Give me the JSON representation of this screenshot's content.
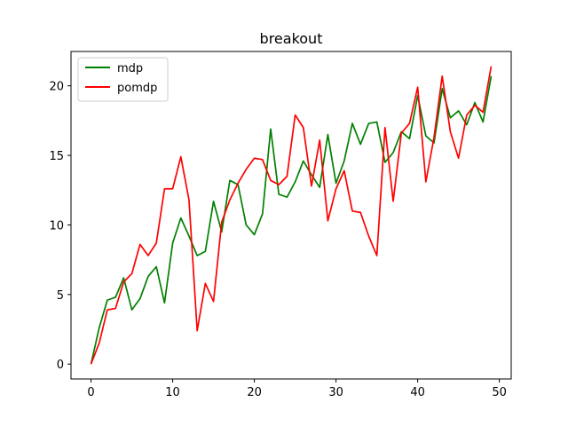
{
  "chart_data": {
    "type": "line",
    "title": "breakout",
    "xlabel": "",
    "ylabel": "",
    "xlim": [
      -2.45,
      51.45
    ],
    "ylim": [
      -1.07,
      22.47
    ],
    "xticks": [
      0,
      10,
      20,
      30,
      40,
      50
    ],
    "yticks": [
      0,
      5,
      10,
      15,
      20
    ],
    "grid": false,
    "legend": "top-left",
    "x": [
      0,
      1,
      2,
      3,
      4,
      5,
      6,
      7,
      8,
      9,
      10,
      11,
      12,
      13,
      14,
      15,
      16,
      17,
      18,
      19,
      20,
      21,
      22,
      23,
      24,
      25,
      26,
      27,
      28,
      29,
      30,
      31,
      32,
      33,
      34,
      35,
      36,
      37,
      38,
      39,
      40,
      41,
      42,
      43,
      44,
      45,
      46,
      47,
      48,
      49
    ],
    "series": [
      {
        "name": "mdp",
        "color": "#008000",
        "values": [
          0.0,
          2.6,
          4.6,
          4.8,
          6.2,
          3.9,
          4.7,
          6.3,
          7.0,
          4.4,
          8.7,
          10.5,
          9.2,
          7.8,
          8.1,
          11.7,
          9.5,
          13.2,
          12.9,
          10.0,
          9.3,
          10.8,
          16.9,
          12.2,
          12.0,
          13.1,
          14.6,
          13.6,
          12.7,
          16.5,
          13.0,
          14.6,
          17.3,
          15.8,
          17.3,
          17.4,
          14.5,
          15.2,
          16.7,
          16.2,
          19.3,
          16.4,
          15.9,
          19.8,
          17.7,
          18.2,
          17.2,
          18.8,
          17.4,
          20.7
        ]
      },
      {
        "name": "pomdp",
        "color": "#ff0000",
        "values": [
          0.0,
          1.5,
          3.9,
          4.0,
          5.9,
          6.5,
          8.6,
          7.8,
          8.7,
          12.6,
          12.6,
          14.9,
          11.8,
          2.4,
          5.8,
          4.5,
          10.2,
          11.8,
          13.0,
          14.0,
          14.8,
          14.7,
          13.2,
          12.9,
          13.5,
          17.9,
          17.0,
          12.8,
          16.1,
          10.3,
          12.6,
          13.9,
          11.0,
          10.9,
          9.2,
          7.8,
          17.0,
          11.7,
          16.6,
          17.3,
          19.9,
          13.1,
          16.3,
          20.7,
          16.7,
          14.8,
          17.9,
          18.6,
          18.1,
          21.4
        ]
      }
    ]
  }
}
